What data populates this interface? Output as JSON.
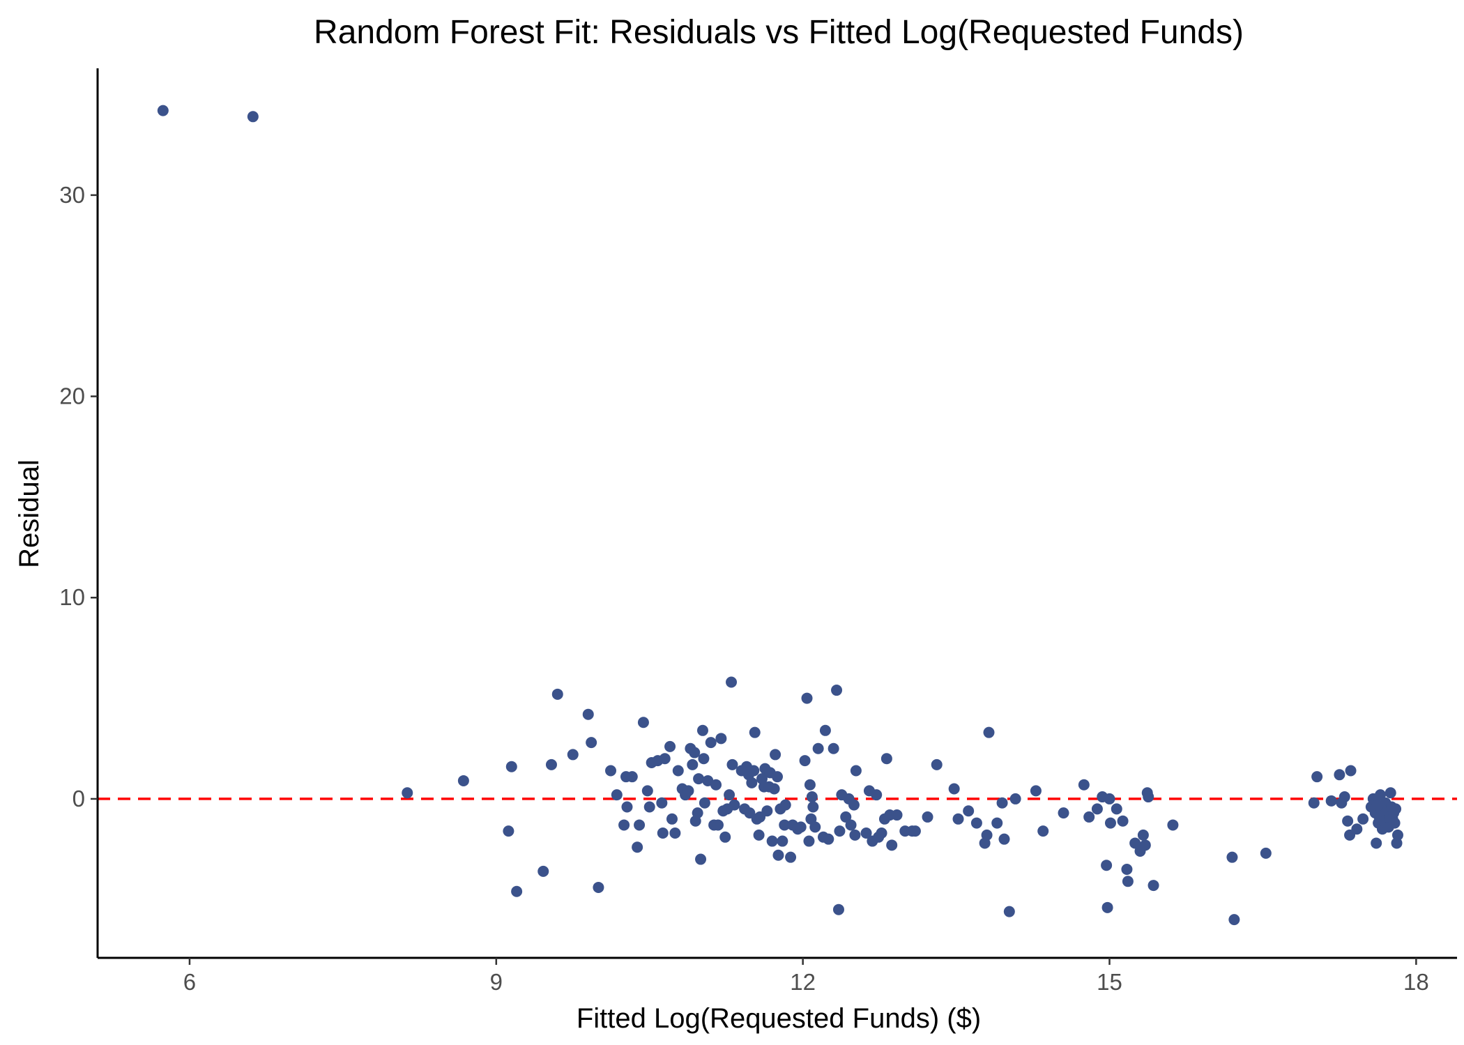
{
  "chart_data": {
    "type": "scatter",
    "title": "Random Forest Fit: Residuals vs Fitted Log(Requested Funds)",
    "xlabel": "Fitted Log(Requested Funds) ($)",
    "ylabel": "Residual",
    "xlim": [
      5.1,
      18.4
    ],
    "ylim": [
      -7.9,
      36.3
    ],
    "xticks": [
      6,
      9,
      12,
      15,
      18
    ],
    "yticks": [
      0,
      10,
      20,
      30
    ],
    "grid": false,
    "legend": "none",
    "point_color": "#3B528B",
    "reference_line": {
      "y": 0,
      "style": "dashed",
      "color": "#FF0000"
    },
    "points": [
      {
        "x": 5.74,
        "y": 34.2
      },
      {
        "x": 6.62,
        "y": 33.9
      },
      {
        "x": 8.13,
        "y": 0.3
      },
      {
        "x": 8.68,
        "y": 0.9
      },
      {
        "x": 9.12,
        "y": -1.6
      },
      {
        "x": 9.15,
        "y": 1.6
      },
      {
        "x": 9.2,
        "y": -4.6
      },
      {
        "x": 9.46,
        "y": -3.6
      },
      {
        "x": 9.54,
        "y": 1.7
      },
      {
        "x": 9.6,
        "y": 5.2
      },
      {
        "x": 9.75,
        "y": 2.2
      },
      {
        "x": 9.9,
        "y": 4.2
      },
      {
        "x": 9.93,
        "y": 2.8
      },
      {
        "x": 10.0,
        "y": -4.4
      },
      {
        "x": 10.12,
        "y": 1.4
      },
      {
        "x": 10.18,
        "y": 0.2
      },
      {
        "x": 10.25,
        "y": -1.3
      },
      {
        "x": 10.27,
        "y": 1.1
      },
      {
        "x": 10.28,
        "y": -0.4
      },
      {
        "x": 10.33,
        "y": 1.1
      },
      {
        "x": 10.38,
        "y": -2.4
      },
      {
        "x": 10.4,
        "y": -1.3
      },
      {
        "x": 10.44,
        "y": 3.8
      },
      {
        "x": 10.48,
        "y": 0.4
      },
      {
        "x": 10.5,
        "y": -0.4
      },
      {
        "x": 10.52,
        "y": 1.8
      },
      {
        "x": 10.58,
        "y": 1.9
      },
      {
        "x": 10.62,
        "y": -0.2
      },
      {
        "x": 10.63,
        "y": -1.7
      },
      {
        "x": 10.65,
        "y": 2.0
      },
      {
        "x": 10.7,
        "y": 2.6
      },
      {
        "x": 10.72,
        "y": -1.0
      },
      {
        "x": 10.75,
        "y": -1.7
      },
      {
        "x": 10.78,
        "y": 1.4
      },
      {
        "x": 10.82,
        "y": 0.5
      },
      {
        "x": 10.85,
        "y": 0.2
      },
      {
        "x": 10.88,
        "y": 0.4
      },
      {
        "x": 10.9,
        "y": 2.5
      },
      {
        "x": 10.92,
        "y": 1.7
      },
      {
        "x": 10.94,
        "y": 2.3
      },
      {
        "x": 10.95,
        "y": -1.1
      },
      {
        "x": 10.97,
        "y": -0.7
      },
      {
        "x": 10.98,
        "y": 1.0
      },
      {
        "x": 11.0,
        "y": -3.0
      },
      {
        "x": 11.02,
        "y": 3.4
      },
      {
        "x": 11.03,
        "y": 2.0
      },
      {
        "x": 11.04,
        "y": -0.2
      },
      {
        "x": 11.07,
        "y": 0.9
      },
      {
        "x": 11.1,
        "y": 2.8
      },
      {
        "x": 11.13,
        "y": -1.3
      },
      {
        "x": 11.15,
        "y": 0.7
      },
      {
        "x": 11.17,
        "y": -1.3
      },
      {
        "x": 11.2,
        "y": 3.0
      },
      {
        "x": 11.22,
        "y": -0.6
      },
      {
        "x": 11.24,
        "y": -1.9
      },
      {
        "x": 11.26,
        "y": -0.5
      },
      {
        "x": 11.28,
        "y": 0.2
      },
      {
        "x": 11.3,
        "y": 5.8
      },
      {
        "x": 11.31,
        "y": 1.7
      },
      {
        "x": 11.33,
        "y": -0.3
      },
      {
        "x": 11.4,
        "y": 1.4
      },
      {
        "x": 11.43,
        "y": -0.5
      },
      {
        "x": 11.45,
        "y": 1.6
      },
      {
        "x": 11.47,
        "y": 1.2
      },
      {
        "x": 11.48,
        "y": -0.7
      },
      {
        "x": 11.5,
        "y": 0.8
      },
      {
        "x": 11.52,
        "y": 1.4
      },
      {
        "x": 11.53,
        "y": 3.3
      },
      {
        "x": 11.55,
        "y": -1.0
      },
      {
        "x": 11.57,
        "y": -1.8
      },
      {
        "x": 11.58,
        "y": -0.9
      },
      {
        "x": 11.6,
        "y": 1.0
      },
      {
        "x": 11.62,
        "y": 0.6
      },
      {
        "x": 11.63,
        "y": 1.5
      },
      {
        "x": 11.65,
        "y": -0.6
      },
      {
        "x": 11.67,
        "y": 0.6
      },
      {
        "x": 11.68,
        "y": 1.3
      },
      {
        "x": 11.7,
        "y": -2.1
      },
      {
        "x": 11.72,
        "y": 0.5
      },
      {
        "x": 11.73,
        "y": 2.2
      },
      {
        "x": 11.75,
        "y": 1.1
      },
      {
        "x": 11.76,
        "y": -2.8
      },
      {
        "x": 11.78,
        "y": -0.5
      },
      {
        "x": 11.8,
        "y": -2.1
      },
      {
        "x": 11.82,
        "y": -1.3
      },
      {
        "x": 11.83,
        "y": -0.3
      },
      {
        "x": 11.88,
        "y": -2.9
      },
      {
        "x": 11.9,
        "y": -1.3
      },
      {
        "x": 11.95,
        "y": -1.5
      },
      {
        "x": 11.98,
        "y": -1.4
      },
      {
        "x": 12.02,
        "y": 1.9
      },
      {
        "x": 12.04,
        "y": 5.0
      },
      {
        "x": 12.06,
        "y": -2.1
      },
      {
        "x": 12.07,
        "y": 0.7
      },
      {
        "x": 12.08,
        "y": -1.0
      },
      {
        "x": 12.09,
        "y": 0.1
      },
      {
        "x": 12.1,
        "y": -0.4
      },
      {
        "x": 12.12,
        "y": -1.4
      },
      {
        "x": 12.15,
        "y": 2.5
      },
      {
        "x": 12.2,
        "y": -1.9
      },
      {
        "x": 12.22,
        "y": 3.4
      },
      {
        "x": 12.25,
        "y": -2.0
      },
      {
        "x": 12.3,
        "y": 2.5
      },
      {
        "x": 12.33,
        "y": 5.4
      },
      {
        "x": 12.35,
        "y": -5.5
      },
      {
        "x": 12.36,
        "y": -1.6
      },
      {
        "x": 12.38,
        "y": 0.2
      },
      {
        "x": 12.42,
        "y": -0.9
      },
      {
        "x": 12.45,
        "y": 0.0
      },
      {
        "x": 12.47,
        "y": -1.3
      },
      {
        "x": 12.5,
        "y": -0.3
      },
      {
        "x": 12.51,
        "y": -1.8
      },
      {
        "x": 12.52,
        "y": 1.4
      },
      {
        "x": 12.62,
        "y": -1.7
      },
      {
        "x": 12.65,
        "y": 0.4
      },
      {
        "x": 12.68,
        "y": -2.1
      },
      {
        "x": 12.72,
        "y": 0.2
      },
      {
        "x": 12.74,
        "y": -1.9
      },
      {
        "x": 12.77,
        "y": -1.7
      },
      {
        "x": 12.8,
        "y": -1.0
      },
      {
        "x": 12.82,
        "y": 2.0
      },
      {
        "x": 12.85,
        "y": -0.8
      },
      {
        "x": 12.87,
        "y": -2.3
      },
      {
        "x": 12.92,
        "y": -0.8
      },
      {
        "x": 13.0,
        "y": -1.6
      },
      {
        "x": 13.07,
        "y": -1.6
      },
      {
        "x": 13.1,
        "y": -1.6
      },
      {
        "x": 13.22,
        "y": -0.9
      },
      {
        "x": 13.31,
        "y": 1.7
      },
      {
        "x": 13.48,
        "y": 0.5
      },
      {
        "x": 13.52,
        "y": -1.0
      },
      {
        "x": 13.62,
        "y": -0.6
      },
      {
        "x": 13.7,
        "y": -1.2
      },
      {
        "x": 13.78,
        "y": -2.2
      },
      {
        "x": 13.8,
        "y": -1.8
      },
      {
        "x": 13.82,
        "y": 3.3
      },
      {
        "x": 13.9,
        "y": -1.2
      },
      {
        "x": 13.95,
        "y": -0.2
      },
      {
        "x": 13.97,
        "y": -2.0
      },
      {
        "x": 14.02,
        "y": -5.6
      },
      {
        "x": 14.08,
        "y": 0.0
      },
      {
        "x": 14.28,
        "y": 0.4
      },
      {
        "x": 14.35,
        "y": -1.6
      },
      {
        "x": 14.55,
        "y": -0.7
      },
      {
        "x": 14.75,
        "y": 0.7
      },
      {
        "x": 14.8,
        "y": -0.9
      },
      {
        "x": 14.88,
        "y": -0.5
      },
      {
        "x": 14.93,
        "y": 0.1
      },
      {
        "x": 14.97,
        "y": -3.3
      },
      {
        "x": 14.98,
        "y": -5.4
      },
      {
        "x": 15.0,
        "y": 0.0
      },
      {
        "x": 15.01,
        "y": -1.2
      },
      {
        "x": 15.07,
        "y": -0.5
      },
      {
        "x": 15.13,
        "y": -1.1
      },
      {
        "x": 15.17,
        "y": -3.5
      },
      {
        "x": 15.18,
        "y": -4.1
      },
      {
        "x": 15.25,
        "y": -2.2
      },
      {
        "x": 15.3,
        "y": -2.6
      },
      {
        "x": 15.33,
        "y": -1.8
      },
      {
        "x": 15.35,
        "y": -2.3
      },
      {
        "x": 15.37,
        "y": 0.3
      },
      {
        "x": 15.38,
        "y": 0.1
      },
      {
        "x": 15.43,
        "y": -4.3
      },
      {
        "x": 15.62,
        "y": -1.3
      },
      {
        "x": 16.2,
        "y": -2.9
      },
      {
        "x": 16.22,
        "y": -6.0
      },
      {
        "x": 16.53,
        "y": -2.7
      },
      {
        "x": 17.0,
        "y": -0.2
      },
      {
        "x": 17.03,
        "y": 1.1
      },
      {
        "x": 17.17,
        "y": -0.1
      },
      {
        "x": 17.25,
        "y": 1.2
      },
      {
        "x": 17.27,
        "y": -0.2
      },
      {
        "x": 17.3,
        "y": 0.1
      },
      {
        "x": 17.33,
        "y": -1.1
      },
      {
        "x": 17.35,
        "y": -1.8
      },
      {
        "x": 17.36,
        "y": 1.4
      },
      {
        "x": 17.42,
        "y": -1.5
      },
      {
        "x": 17.48,
        "y": -1.0
      },
      {
        "x": 17.56,
        "y": -0.4
      },
      {
        "x": 17.58,
        "y": 0.0
      },
      {
        "x": 17.6,
        "y": -0.7
      },
      {
        "x": 17.61,
        "y": -2.2
      },
      {
        "x": 17.62,
        "y": -0.3
      },
      {
        "x": 17.63,
        "y": -1.2
      },
      {
        "x": 17.64,
        "y": -0.9
      },
      {
        "x": 17.65,
        "y": 0.2
      },
      {
        "x": 17.66,
        "y": -0.5
      },
      {
        "x": 17.67,
        "y": -1.5
      },
      {
        "x": 17.68,
        "y": -0.8
      },
      {
        "x": 17.69,
        "y": -1.1
      },
      {
        "x": 17.7,
        "y": -0.2
      },
      {
        "x": 17.71,
        "y": -1.3
      },
      {
        "x": 17.72,
        "y": -0.6
      },
      {
        "x": 17.73,
        "y": -1.4
      },
      {
        "x": 17.74,
        "y": -0.9
      },
      {
        "x": 17.75,
        "y": 0.3
      },
      {
        "x": 17.76,
        "y": -0.4
      },
      {
        "x": 17.77,
        "y": -1.0
      },
      {
        "x": 17.78,
        "y": -0.7
      },
      {
        "x": 17.79,
        "y": -1.2
      },
      {
        "x": 17.8,
        "y": -0.5
      },
      {
        "x": 17.81,
        "y": -2.2
      },
      {
        "x": 17.82,
        "y": -1.8
      }
    ]
  }
}
